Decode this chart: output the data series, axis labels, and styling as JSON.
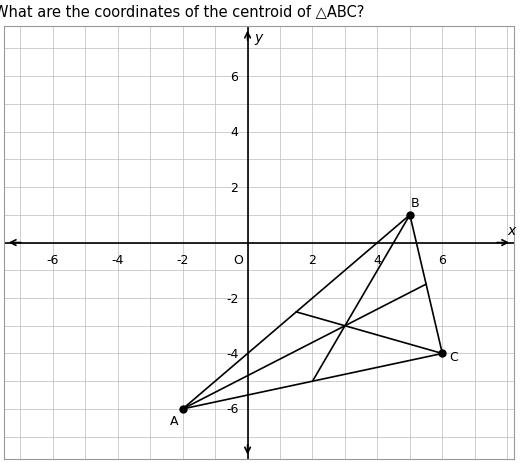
{
  "title": "What are the coordinates of the centroid of △ABC?",
  "title_fontsize": 10.5,
  "A": [
    -2,
    -6
  ],
  "B": [
    5,
    1
  ],
  "C": [
    6,
    -4
  ],
  "vertex_label_offsets": {
    "A": [
      -0.25,
      -0.4
    ],
    "B": [
      0.15,
      0.45
    ],
    "C": [
      0.35,
      -0.1
    ]
  },
  "point_color": "black",
  "triangle_color": "black",
  "median_color": "black",
  "line_width": 1.2,
  "grid_color": "#bbbbbb",
  "axis_color": "black",
  "xlim": [
    -7.5,
    8.2
  ],
  "ylim": [
    -7.8,
    7.8
  ],
  "xticks": [
    -6,
    -4,
    -2,
    0,
    2,
    4,
    6
  ],
  "yticks": [
    -6,
    -4,
    -2,
    0,
    2,
    4,
    6
  ],
  "tick_labels_x": [
    "-6",
    "-4",
    "-2",
    "O",
    "2",
    "4",
    "6"
  ],
  "tick_labels_y": [
    "-6",
    "-4",
    "-2",
    "",
    "2",
    "4",
    "6"
  ],
  "xlabel": "x",
  "ylabel": "y",
  "figsize": [
    5.21,
    4.64
  ],
  "dpi": 100
}
